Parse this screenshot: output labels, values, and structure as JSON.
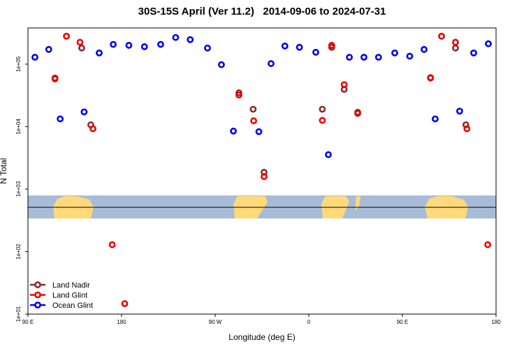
{
  "chart_data": {
    "type": "scatter",
    "title": "30S-15S April (Ver 11.2)   2014-09-06 to 2024-07-31",
    "x_label": "Longitude (deg E)",
    "y_label": "N Total",
    "log_y": true,
    "xlim": [
      90,
      540
    ],
    "xticks": [
      {
        "value": 90,
        "label": "90 E"
      },
      180,
      {
        "value": 270,
        "label": "90 W"
      },
      {
        "value": 360,
        "label": "0"
      },
      {
        "value": 450,
        "label": "90 E"
      },
      {
        "value": 540,
        "label": "180"
      }
    ],
    "ylim": [
      10,
      380000
    ],
    "yticks": [
      {
        "value": 10,
        "label": "1e+01"
      },
      {
        "value": 100,
        "label": "1e+02"
      },
      {
        "value": 1000,
        "label": "1e+03"
      },
      {
        "value": 10000,
        "label": "1e+04"
      },
      {
        "value": 100000,
        "label": "1e+05"
      }
    ],
    "legend": "bottom-left",
    "series": [
      {
        "name": "Land Nadir",
        "color": "#8b2a2a",
        "x": [
          116,
          141.7,
          150.4,
          292.8,
          306.5,
          317,
          373,
          382,
          394,
          407,
          477,
          501,
          511
        ],
        "values": [
          60000,
          181000,
          10700,
          34800,
          19000,
          1860,
          19000,
          186000,
          39500,
          17000,
          60000,
          181000,
          10700
        ]
      },
      {
        "name": "Land Glint",
        "color": "#ee0000",
        "x": [
          116,
          127,
          140,
          152.5,
          171,
          183,
          292.8,
          307,
          317,
          373,
          382,
          394,
          407,
          477,
          487.6,
          501,
          512,
          532
        ],
        "values": [
          58000,
          280000,
          224000,
          9250,
          129,
          14.7,
          32000,
          12400,
          1590,
          12600,
          200000,
          47000,
          16300,
          61000,
          280000,
          224000,
          9250,
          129
        ]
      },
      {
        "name": "Ocean Glint",
        "color": "#0000ee",
        "x": [
          96.7,
          110,
          121,
          144,
          158.5,
          172,
          187,
          202,
          217.6,
          232,
          246,
          262.6,
          276,
          287.5,
          312,
          323.7,
          337,
          351,
          366.7,
          378.8,
          399,
          413,
          427,
          442.6,
          457,
          470.8,
          481.5,
          505,
          518.5,
          532.6
        ],
        "values": [
          129000,
          172000,
          13300,
          17200,
          151000,
          207000,
          200000,
          190000,
          207000,
          267000,
          247000,
          181000,
          98000,
          8500,
          8300,
          102000,
          195000,
          186000,
          155000,
          3560,
          129000,
          129000,
          129000,
          151000,
          134000,
          172000,
          13300,
          17700,
          151000,
          212000
        ]
      }
    ]
  }
}
